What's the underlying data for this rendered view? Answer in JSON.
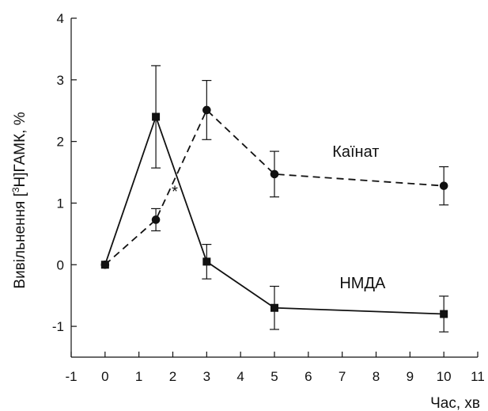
{
  "chart_data": {
    "type": "line",
    "title": "",
    "xlabel": "Час, хв",
    "ylabel": "Вивільнення [3H]ГАМК, %",
    "ylabel_parts": {
      "prefix": "Вивільнення [",
      "superscript": "3",
      "suffix": "H]ГАМК, %"
    },
    "xlim": [
      -1,
      11
    ],
    "ylim": [
      -1.5,
      4
    ],
    "x_ticks": [
      -1,
      0,
      1,
      2,
      3,
      4,
      5,
      6,
      7,
      8,
      9,
      10,
      11
    ],
    "y_ticks": [
      -1,
      0,
      1,
      2,
      3,
      4
    ],
    "grid": false,
    "series": [
      {
        "name": "Каїнат",
        "style": "dashed",
        "marker": "circle",
        "x": [
          0,
          1.5,
          3,
          5,
          10
        ],
        "y": [
          0,
          0.73,
          2.51,
          1.47,
          1.28
        ],
        "error": [
          0,
          0.18,
          0.48,
          0.37,
          0.31
        ]
      },
      {
        "name": "НМДА",
        "style": "solid",
        "marker": "square",
        "x": [
          0,
          1.5,
          3,
          5,
          10
        ],
        "y": [
          0,
          2.4,
          0.05,
          -0.7,
          -0.8
        ],
        "error": [
          0,
          0.83,
          0.28,
          0.35,
          0.29
        ]
      }
    ],
    "annotations": [
      {
        "text": "*",
        "x": 2.06,
        "y": 1.1
      }
    ]
  }
}
